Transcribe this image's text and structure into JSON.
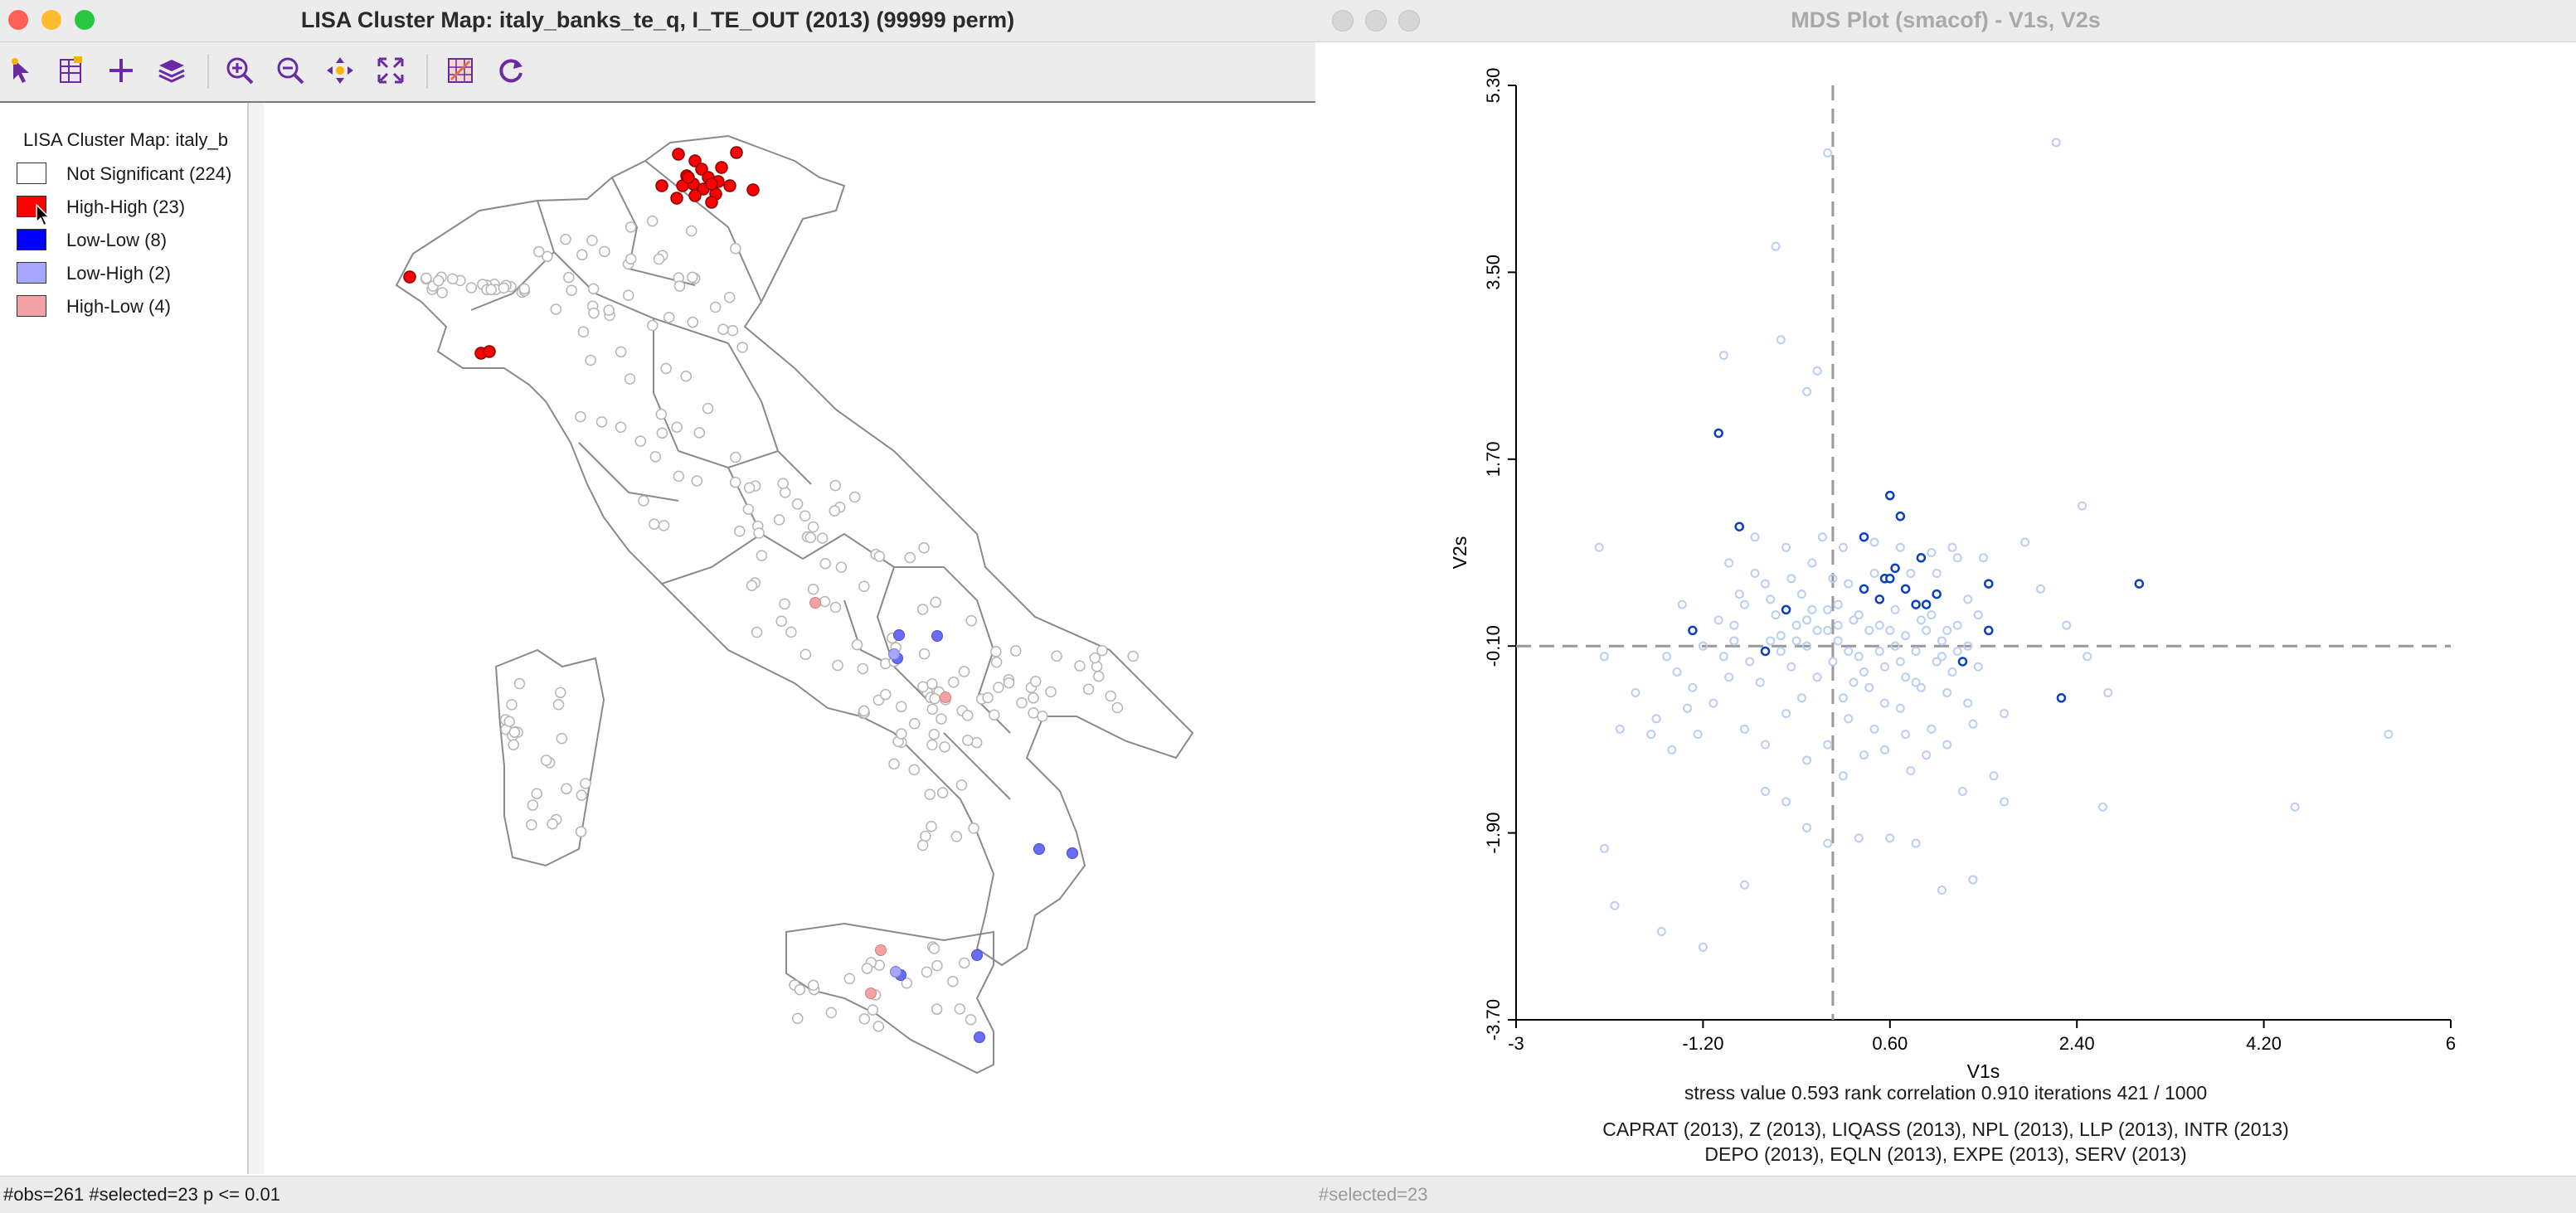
{
  "left_window": {
    "title": "LISA Cluster Map: italy_banks_te_q, I_TE_OUT (2013) (99999 perm)",
    "toolbar": [
      "select-tool-icon",
      "table-icon",
      "add-icon",
      "layers-icon",
      "zoom-in-icon",
      "zoom-out-icon",
      "pan-icon",
      "fit-extent-icon",
      "basemap-icon",
      "refresh-icon"
    ],
    "legend": {
      "title": "LISA Cluster Map: italy_b",
      "items": [
        {
          "label": "Not Significant (224)",
          "color": "#ffffff"
        },
        {
          "label": "High-High (23)",
          "color": "#ff0000"
        },
        {
          "label": "Low-Low (8)",
          "color": "#0000ff"
        },
        {
          "label": "Low-High (2)",
          "color": "#a7a6fd"
        },
        {
          "label": "High-Low (4)",
          "color": "#f4a3a4"
        }
      ]
    },
    "status": "#obs=261 #selected=23   p <= 0.01"
  },
  "right_window": {
    "title": "MDS Plot (smacof) - V1s, V2s",
    "status": "#selected=23",
    "footer": {
      "stats": "stress value  0.593  rank correlation  0.910  iterations  421  /  1000",
      "vars_line1": "CAPRAT (2013), Z (2013), LIQASS (2013), NPL (2013), LLP (2013), INTR (2013)",
      "vars_line2": "DEPO (2013), EQLN (2013), EXPE (2013), SERV (2013)"
    }
  },
  "colors": {
    "selected": "#0a3fbf",
    "unselected": "#b9cdf5",
    "axis": "#999999"
  },
  "chart_data": {
    "type": "scatter",
    "title": "MDS Plot (smacof) - V1s, V2s",
    "xlabel": "V1s",
    "ylabel": "V2s",
    "xlim": [
      -3,
      6
    ],
    "ylim": [
      -3.7,
      5.3
    ],
    "x_ticks": [
      "-3",
      "-1.20",
      "0.60",
      "2.40",
      "4.20",
      "6"
    ],
    "y_ticks": [
      "5.30",
      "3.50",
      "1.70",
      "-0.10",
      "-1.90",
      "-3.70"
    ],
    "x_tick_values": [
      -3,
      -1.2,
      0.6,
      2.4,
      4.2,
      6
    ],
    "y_tick_values": [
      5.3,
      3.5,
      1.7,
      -0.1,
      -1.9,
      -3.7
    ],
    "ref_lines": {
      "x": 0.05,
      "y": -0.1
    },
    "series": [
      {
        "name": "selected",
        "points": [
          [
            -1.05,
            1.95
          ],
          [
            -0.85,
            1.05
          ],
          [
            0.35,
            0.95
          ],
          [
            0.6,
            1.35
          ],
          [
            0.7,
            1.15
          ],
          [
            0.35,
            0.45
          ],
          [
            0.55,
            0.55
          ],
          [
            0.6,
            0.55
          ],
          [
            0.5,
            0.35
          ],
          [
            0.75,
            0.45
          ],
          [
            0.9,
            0.75
          ],
          [
            0.65,
            0.65
          ],
          [
            0.95,
            0.3
          ],
          [
            1.05,
            0.4
          ],
          [
            1.55,
            0.5
          ],
          [
            1.55,
            0.05
          ],
          [
            1.3,
            -0.25
          ],
          [
            -0.6,
            -0.15
          ],
          [
            -0.4,
            0.25
          ],
          [
            -1.3,
            0.05
          ],
          [
            2.25,
            -0.6
          ],
          [
            3.0,
            0.5
          ],
          [
            0.85,
            0.3
          ]
        ]
      },
      {
        "name": "unselected",
        "points": [
          [
            2.2,
            4.75
          ],
          [
            0.0,
            4.65
          ],
          [
            -0.5,
            3.75
          ],
          [
            -0.45,
            2.85
          ],
          [
            -0.2,
            2.35
          ],
          [
            -0.1,
            2.55
          ],
          [
            -1.0,
            2.7
          ],
          [
            2.45,
            1.25
          ],
          [
            -2.2,
            0.85
          ],
          [
            -2.15,
            -0.2
          ],
          [
            -1.7,
            -0.95
          ],
          [
            -1.5,
            -1.1
          ],
          [
            -1.3,
            -0.5
          ],
          [
            -1.45,
            -0.35
          ],
          [
            -1.65,
            -0.8
          ],
          [
            -1.1,
            -0.65
          ],
          [
            -1.0,
            -0.2
          ],
          [
            -0.9,
            0.1
          ],
          [
            -0.8,
            0.3
          ],
          [
            -0.7,
            0.6
          ],
          [
            -0.6,
            0.5
          ],
          [
            -0.5,
            0.2
          ],
          [
            -0.45,
            0.0
          ],
          [
            -0.35,
            -0.3
          ],
          [
            -0.3,
            0.1
          ],
          [
            -0.25,
            0.4
          ],
          [
            -0.2,
            -0.1
          ],
          [
            -0.15,
            0.25
          ],
          [
            -0.1,
            -0.4
          ],
          [
            0.0,
            0.05
          ],
          [
            0.05,
            -0.25
          ],
          [
            0.1,
            0.3
          ],
          [
            0.15,
            -0.6
          ],
          [
            0.2,
            -0.8
          ],
          [
            0.25,
            0.15
          ],
          [
            0.3,
            -0.2
          ],
          [
            0.4,
            -0.5
          ],
          [
            0.45,
            -0.9
          ],
          [
            0.5,
            0.1
          ],
          [
            0.55,
            -0.3
          ],
          [
            0.65,
            -0.1
          ],
          [
            0.7,
            -0.7
          ],
          [
            0.75,
            0.0
          ],
          [
            0.8,
            -1.3
          ],
          [
            0.85,
            -0.45
          ],
          [
            0.9,
            0.15
          ],
          [
            1.0,
            -0.9
          ],
          [
            1.05,
            0.6
          ],
          [
            1.1,
            -0.2
          ],
          [
            1.15,
            -0.55
          ],
          [
            1.2,
            0.85
          ],
          [
            1.25,
            0.1
          ],
          [
            1.3,
            -1.5
          ],
          [
            1.35,
            0.35
          ],
          [
            1.4,
            -0.85
          ],
          [
            1.45,
            -0.3
          ],
          [
            1.5,
            0.75
          ],
          [
            1.6,
            -1.35
          ],
          [
            1.7,
            -0.75
          ],
          [
            1.9,
            0.9
          ],
          [
            2.05,
            0.45
          ],
          [
            2.3,
            0.1
          ],
          [
            2.5,
            -0.2
          ],
          [
            2.7,
            -0.55
          ],
          [
            2.65,
            -1.65
          ],
          [
            4.5,
            -1.65
          ],
          [
            5.4,
            -0.95
          ],
          [
            -2.15,
            -2.05
          ],
          [
            -2.05,
            -2.6
          ],
          [
            -1.6,
            -2.85
          ],
          [
            -1.2,
            -3.0
          ],
          [
            -0.8,
            -2.4
          ],
          [
            -0.6,
            -1.5
          ],
          [
            -0.4,
            -1.6
          ],
          [
            -0.2,
            -1.85
          ],
          [
            0.0,
            -2.0
          ],
          [
            0.3,
            -1.95
          ],
          [
            0.6,
            -1.95
          ],
          [
            0.85,
            -2.0
          ],
          [
            1.1,
            -2.45
          ],
          [
            1.4,
            -2.35
          ],
          [
            1.7,
            -1.6
          ],
          [
            -0.9,
            -0.05
          ],
          [
            -0.75,
            -0.25
          ],
          [
            -0.65,
            -0.45
          ],
          [
            -0.55,
            0.35
          ],
          [
            -0.35,
            0.55
          ],
          [
            -0.25,
            -0.6
          ],
          [
            -0.15,
            0.7
          ],
          [
            0.05,
            0.55
          ],
          [
            0.1,
            -0.05
          ],
          [
            0.2,
            0.5
          ],
          [
            0.3,
            0.2
          ],
          [
            0.35,
            -0.35
          ],
          [
            0.45,
            0.6
          ],
          [
            0.55,
            -0.65
          ],
          [
            0.65,
            0.25
          ],
          [
            0.7,
            -0.25
          ],
          [
            0.8,
            0.6
          ],
          [
            0.9,
            -0.5
          ],
          [
            1.0,
            0.2
          ],
          [
            1.1,
            -0.05
          ],
          [
            1.2,
            -0.35
          ],
          [
            1.35,
            -0.1
          ],
          [
            1.45,
            0.2
          ],
          [
            -1.2,
            -0.1
          ],
          [
            -1.05,
            0.15
          ],
          [
            -0.95,
            -0.4
          ],
          [
            -0.85,
            0.4
          ],
          [
            -0.55,
            -0.05
          ],
          [
            -0.45,
            -0.15
          ],
          [
            -0.3,
            -0.05
          ],
          [
            -0.2,
            0.15
          ],
          [
            -0.1,
            0.05
          ],
          [
            0.0,
            0.25
          ],
          [
            0.1,
            0.1
          ],
          [
            0.2,
            -0.15
          ],
          [
            0.25,
            -0.45
          ],
          [
            0.4,
            0.05
          ],
          [
            0.5,
            -0.15
          ],
          [
            0.6,
            0.05
          ],
          [
            0.75,
            -0.4
          ],
          [
            0.85,
            -0.15
          ],
          [
            0.95,
            0.05
          ],
          [
            1.05,
            -0.25
          ],
          [
            1.15,
            0.05
          ],
          [
            1.25,
            -0.15
          ],
          [
            -1.35,
            -0.7
          ],
          [
            -1.25,
            -0.95
          ],
          [
            -0.8,
            -0.9
          ],
          [
            -0.6,
            -1.05
          ],
          [
            -0.4,
            -0.75
          ],
          [
            -0.2,
            -1.2
          ],
          [
            0.0,
            -1.05
          ],
          [
            0.15,
            -1.35
          ],
          [
            0.35,
            -1.15
          ],
          [
            0.55,
            -1.1
          ],
          [
            0.75,
            -0.95
          ],
          [
            0.95,
            -1.15
          ],
          [
            1.15,
            -1.05
          ],
          [
            1.35,
            -0.65
          ],
          [
            -2.0,
            -0.9
          ],
          [
            -1.85,
            -0.55
          ],
          [
            -1.55,
            -0.2
          ],
          [
            -1.4,
            0.3
          ],
          [
            -0.95,
            0.7
          ],
          [
            -0.7,
            0.95
          ],
          [
            -0.4,
            0.85
          ],
          [
            -0.05,
            0.95
          ],
          [
            0.15,
            0.85
          ],
          [
            0.45,
            0.9
          ],
          [
            0.7,
            0.85
          ],
          [
            1.0,
            0.8
          ],
          [
            1.25,
            0.75
          ]
        ]
      }
    ]
  }
}
